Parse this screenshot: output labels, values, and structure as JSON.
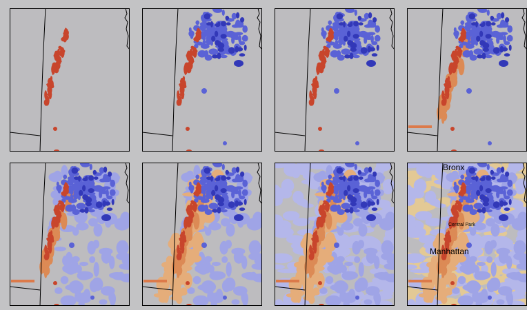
{
  "labels": [
    "Bronx",
    "Central Park",
    "Manhattan"
  ]
}
